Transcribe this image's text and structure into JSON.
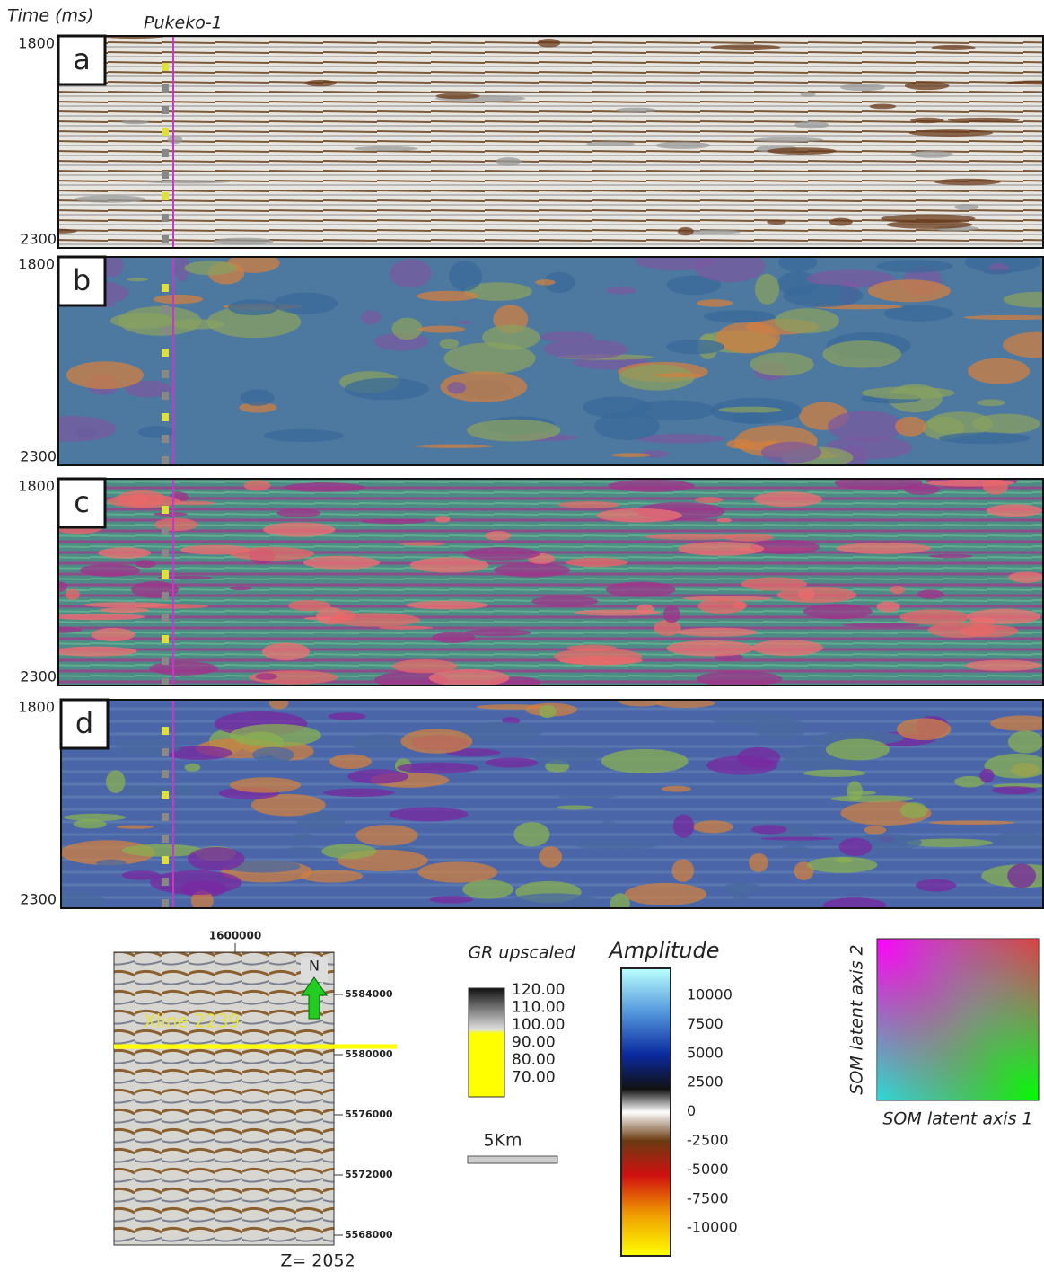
{
  "figure": {
    "axis_title": "Time (ms)",
    "well_name": "Pukeko-1",
    "panels": [
      {
        "label": "a",
        "top_time": "1800",
        "bottom_time": "2300"
      },
      {
        "label": "b",
        "top_time": "1800",
        "bottom_time": "2300"
      },
      {
        "label": "c",
        "top_time": "1800",
        "bottom_time": "2300"
      },
      {
        "label": "d",
        "top_time": "1800",
        "bottom_time": "2300"
      }
    ],
    "map": {
      "x_label": "1600000",
      "y_labels": [
        "5584000",
        "5580000",
        "5576000",
        "5572000",
        "5568000"
      ],
      "north": "N",
      "line_label": "Xline 2239",
      "depth": "Z= 2052"
    },
    "gr_legend": {
      "title": "GR upscaled",
      "ticks": [
        "120.00",
        "110.00",
        "100.00",
        "90.00",
        "80.00",
        "70.00"
      ]
    },
    "scale_bar": "5Km",
    "amplitude_legend": {
      "title": "Amplitude",
      "ticks": [
        "10000",
        "7500",
        "5000",
        "2500",
        "0",
        "-2500",
        "-5000",
        "-7500",
        "-10000"
      ]
    },
    "som_legend": {
      "y_axis": "SOM latent axis 2",
      "x_axis": "SOM latent axis 1"
    }
  }
}
